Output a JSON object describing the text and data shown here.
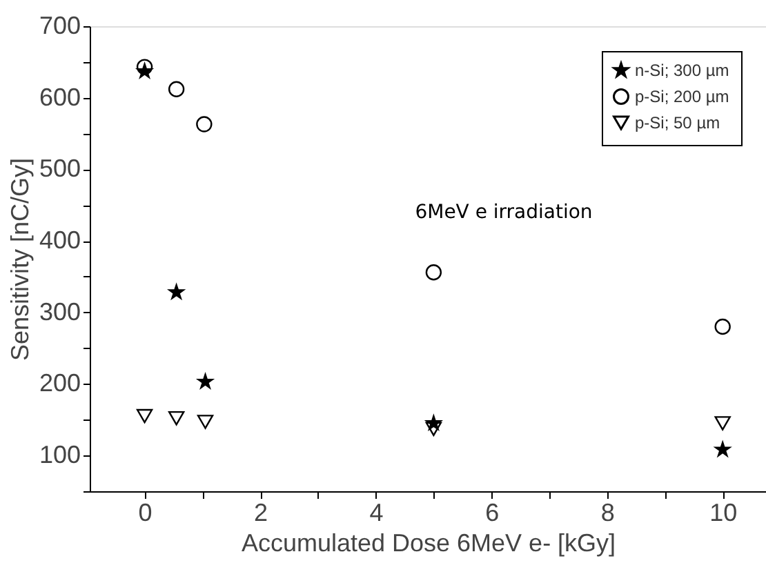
{
  "chart_data": {
    "type": "scatter",
    "xlabel": "Accumulated Dose 6MeV e- [kGy]",
    "ylabel": "Sensitivity [nC/Gy]",
    "annotations": [
      "6MeV e irradiation"
    ],
    "series": [
      {
        "name": "n-Si; 300 µm",
        "color": "#000000",
        "marker": "star",
        "x": [
          0,
          0.55,
          1.05,
          5,
          10
        ],
        "values": [
          637,
          328,
          203,
          145,
          108
        ]
      },
      {
        "name": "p-Si; 200 µm",
        "color": "#000000",
        "marker": "circle",
        "x": [
          0,
          0.55,
          1.03,
          5,
          10
        ],
        "values": [
          643,
          612,
          563,
          356,
          280
        ]
      },
      {
        "name": "p-Si; 50 µm",
        "color": "#000000",
        "marker": "triangle",
        "x": [
          0,
          0.55,
          1.05,
          5,
          10
        ],
        "values": [
          155,
          152,
          147,
          137,
          145
        ]
      }
    ],
    "xlim": [
      -0.95,
      10.75
    ],
    "ylim": [
      50,
      700
    ],
    "xticks": [
      0,
      {
        "value": 1,
        "label": null
      },
      2,
      {
        "value": 3,
        "label": null
      },
      4,
      {
        "value": 5,
        "label": null
      },
      6,
      {
        "value": 7,
        "label": null
      },
      8,
      {
        "value": 9,
        "label": null
      },
      10
    ],
    "yticks": [
      {
        "value": 50,
        "label": null
      },
      100,
      {
        "value": 150,
        "label": null
      },
      200,
      {
        "value": 250,
        "label": null
      },
      300,
      {
        "value": 350,
        "label": null
      },
      400,
      {
        "value": 450,
        "label": null
      },
      500,
      {
        "value": 550,
        "label": null
      },
      600,
      {
        "value": 650,
        "label": null
      },
      700
    ],
    "grid": false,
    "legend": "top right"
  }
}
